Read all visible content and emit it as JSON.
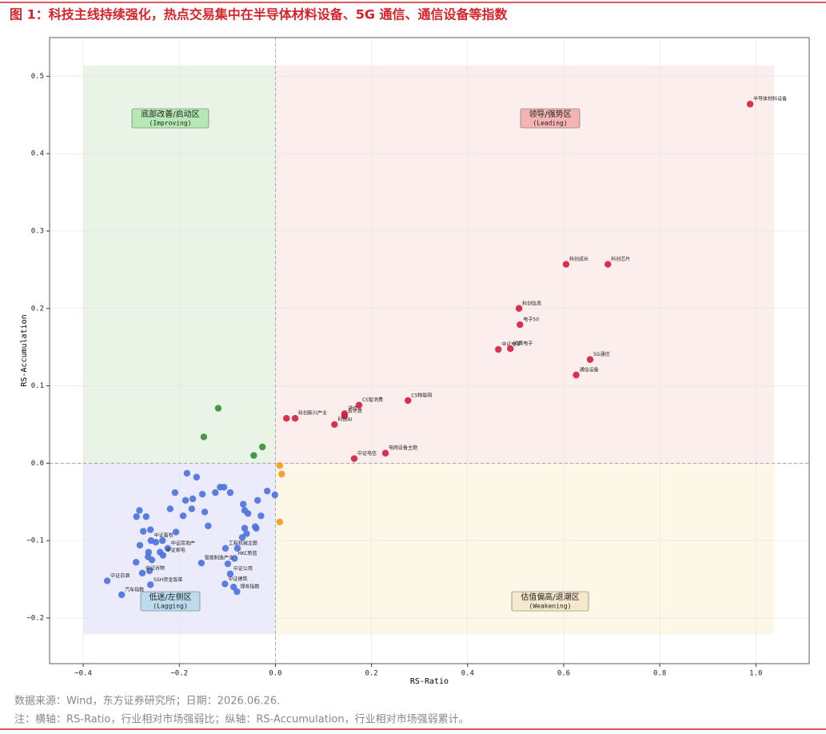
{
  "chart_data": {
    "type": "scatter",
    "title": "图 1：科技主线持续强化，热点交易集中在半导体材料设备、5G 通信、通信设备等指数",
    "x_label": "RS-Ratio",
    "y_label": "RS-Accumulation",
    "xlim": [
      -0.47,
      1.111
    ],
    "ylim": [
      -0.259,
      0.55
    ],
    "xticks": [
      {
        "value": -0.4,
        "label": "−0.4"
      },
      {
        "value": -0.2,
        "label": "−0.2"
      },
      {
        "value": 0,
        "label": "0.0"
      },
      0.2,
      0.4,
      0.6,
      0.8,
      {
        "value": 1,
        "label": "1.0"
      }
    ],
    "yticks": [
      {
        "value": -0.2,
        "label": "−0.2"
      },
      {
        "value": -0.1,
        "label": "−0.1"
      },
      {
        "value": 0,
        "label": "0.0"
      },
      0.1,
      0.2,
      0.3,
      0.4,
      0.5
    ],
    "grid": true,
    "quadrants": [
      {
        "label": "领导/强势区",
        "sublabel": "(Leading)",
        "xrange": [
          0,
          1.038
        ],
        "yrange": [
          0,
          0.514
        ],
        "color": "#fdeeee",
        "box_color": "#f4b4b4"
      },
      {
        "label": "估值偏高/退潮区",
        "sublabel": "(Weakening)",
        "xrange": [
          0,
          1.038
        ],
        "yrange": [
          -0.221,
          0
        ],
        "color": "#fdf7e8",
        "box_color": "#f6e8cc"
      },
      {
        "label": "低迷/左侧区",
        "sublabel": "(Lagging)",
        "xrange": [
          -0.4,
          0
        ],
        "yrange": [
          -0.221,
          0
        ],
        "color": "#ebebfb",
        "box_color": "#bcdcee"
      },
      {
        "label": "底部改善/启动区",
        "sublabel": "(Improving)",
        "xrange": [
          -0.4,
          0
        ],
        "yrange": [
          0,
          0.514
        ],
        "color": "#e9f3e6",
        "box_color": "#b5e8b5"
      }
    ],
    "series": [
      {
        "color": "#d62040",
        "x": [
          0.988,
          0.605,
          0.692,
          0.507,
          0.509,
          0.464,
          0.489,
          0.655,
          0.626,
          0.276,
          0.174,
          0.144,
          0.144,
          0.023,
          0.041,
          0.123,
          0.229,
          0.164
        ],
        "y": [
          0.464,
          0.257,
          0.257,
          0.2,
          0.179,
          0.147,
          0.148,
          0.134,
          0.114,
          0.081,
          0.075,
          0.064,
          0.061,
          0.058,
          0.058,
          0.05,
          0.013,
          0.006
        ],
        "labels": [
          "半导体材料设备",
          "科创成长",
          "科创芯片",
          "科创信息",
          "电子50",
          "中证电子",
          "消费电子",
          "5G通信",
          "通信设备",
          "CS物联网",
          "CS智消费",
          "通信",
          "云计算",
          null,
          "科创新兴产业",
          "科创AI",
          "电网设备主题",
          "中证电信"
        ]
      },
      {
        "color": "#f59a23",
        "x": [
          0.009,
          0.013,
          0.009
        ],
        "y": [
          -0.003,
          -0.014,
          -0.076
        ],
        "labels": [
          null,
          null,
          null
        ]
      },
      {
        "color": "#4d74dc",
        "x": [
          -0.184,
          -0.164,
          -0.209,
          -0.187,
          -0.172,
          -0.152,
          -0.125,
          -0.115,
          -0.107,
          -0.094,
          -0.219,
          -0.174,
          -0.147,
          -0.192,
          -0.14,
          -0.067,
          -0.064,
          -0.037,
          -0.03,
          -0.017,
          -0.001,
          -0.064,
          -0.042,
          -0.06,
          -0.069,
          -0.079,
          -0.085,
          -0.104,
          -0.154,
          -0.207,
          -0.283,
          -0.269,
          -0.289,
          -0.26,
          -0.275,
          -0.259,
          -0.282,
          -0.29,
          -0.265,
          -0.249,
          -0.235,
          -0.224,
          -0.24,
          -0.264,
          -0.234,
          -0.257,
          -0.262,
          -0.277,
          -0.35,
          -0.32,
          -0.26,
          -0.105,
          -0.094,
          -0.087,
          -0.08,
          -0.099,
          -0.04,
          -0.057
        ],
        "y": [
          -0.013,
          -0.018,
          -0.038,
          -0.048,
          -0.046,
          -0.04,
          -0.038,
          -0.031,
          -0.031,
          -0.038,
          -0.059,
          -0.059,
          -0.063,
          -0.068,
          -0.081,
          -0.053,
          -0.061,
          -0.048,
          -0.068,
          -0.036,
          -0.041,
          -0.084,
          -0.082,
          -0.091,
          -0.096,
          -0.11,
          -0.123,
          -0.11,
          -0.129,
          -0.089,
          -0.061,
          -0.069,
          -0.069,
          -0.086,
          -0.088,
          -0.1,
          -0.106,
          -0.128,
          -0.121,
          -0.102,
          -0.1,
          -0.11,
          -0.115,
          -0.115,
          -0.119,
          -0.125,
          -0.139,
          -0.142,
          -0.152,
          -0.17,
          -0.157,
          -0.156,
          -0.143,
          -0.16,
          -0.166,
          -0.13,
          -0.084,
          -0.065
        ],
        "labels": [
          null,
          null,
          null,
          null,
          null,
          null,
          null,
          null,
          null,
          null,
          null,
          null,
          null,
          null,
          null,
          null,
          null,
          null,
          null,
          null,
          null,
          null,
          null,
          null,
          null,
          null,
          "HKC新蓝",
          "工程机械主题",
          "智能制造产业",
          null,
          null,
          null,
          null,
          null,
          null,
          "中证畜牧",
          null,
          null,
          null,
          null,
          null,
          "中证房地产",
          null,
          null,
          "中证家电",
          null,
          null,
          "中证谷物",
          "中证白酒",
          "汽车指数",
          "SSH资金饭菜",
          "中证建筑",
          "中证公用",
          null,
          "煤炭指数",
          null,
          null,
          null
        ]
      },
      {
        "color": "#3b8f3b",
        "x": [
          -0.119,
          -0.149,
          -0.027,
          -0.045
        ],
        "y": [
          0.071,
          0.034,
          0.021,
          0.01
        ],
        "labels": [
          null,
          null,
          null,
          null
        ]
      }
    ],
    "source": "数据来源：Wind，东方证券研究所；日期：2026.06.26.",
    "note": "注：横轴：RS-Ratio，行业相对市场强弱比；纵轴：RS-Accumulation，行业相对市场强弱累计。"
  }
}
